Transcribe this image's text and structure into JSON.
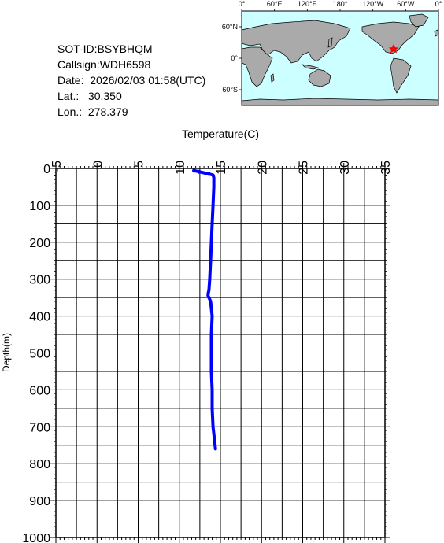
{
  "info": {
    "sot_id": "SOT-ID:BSYBHQM",
    "callsign": "Callsign:WDH6598",
    "date": "Date:  2026/02/03 01:58(UTC)",
    "lat": "Lat.:   30.350",
    "lon": "Lon.:  278.379"
  },
  "map": {
    "top_ticks": [
      "0°",
      "60°E",
      "120°E",
      "180°",
      "120°W",
      "60°W",
      "0°"
    ],
    "left_ticks": [
      "60°N",
      "0°",
      "60°S"
    ],
    "ocean_color": "#ccffff",
    "land_color": "#aaaaaa",
    "marker_color": "#ff0000"
  },
  "chart_data": {
    "type": "line",
    "title": "",
    "xlabel": "Temperature(C)",
    "ylabel": "Depth(m)",
    "xlim": [
      -5,
      35
    ],
    "ylim": [
      0,
      1000
    ],
    "y_inverted": true,
    "x_ticks": [
      "-5",
      "0",
      "5",
      "10",
      "15",
      "20",
      "25",
      "30",
      "35"
    ],
    "y_ticks": [
      "0",
      "100",
      "200",
      "300",
      "400",
      "500",
      "600",
      "700",
      "800",
      "900",
      "1000"
    ],
    "grid": true,
    "line_color": "#0000ff",
    "series": [
      {
        "temperature": [
          11.8,
          12.4,
          13.6,
          14.1,
          14.2,
          14.2,
          14.1,
          14.0,
          13.9,
          13.8,
          13.7,
          13.6,
          13.5,
          13.5,
          13.8,
          14.0,
          13.9,
          13.9,
          13.9,
          14.0,
          14.0,
          14.1,
          14.3,
          14.4
        ],
        "depth": [
          6,
          9,
          15,
          18,
          25,
          50,
          100,
          150,
          200,
          250,
          300,
          330,
          340,
          345,
          360,
          400,
          450,
          500,
          550,
          600,
          650,
          700,
          740,
          760
        ]
      }
    ]
  }
}
